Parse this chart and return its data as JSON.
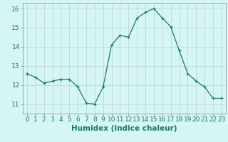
{
  "x": [
    0,
    1,
    2,
    3,
    4,
    5,
    6,
    7,
    8,
    9,
    10,
    11,
    12,
    13,
    14,
    15,
    16,
    17,
    18,
    19,
    20,
    21,
    22,
    23
  ],
  "y": [
    12.6,
    12.4,
    12.1,
    12.2,
    12.3,
    12.3,
    11.9,
    11.05,
    11.0,
    11.9,
    14.1,
    14.6,
    14.5,
    15.5,
    15.8,
    16.0,
    15.5,
    15.05,
    13.8,
    12.6,
    12.2,
    11.9,
    11.3,
    11.3
  ],
  "xlabel": "Humidex (Indice chaleur)",
  "ylim": [
    10.5,
    16.3
  ],
  "xlim": [
    -0.5,
    23.5
  ],
  "yticks": [
    11,
    12,
    13,
    14,
    15,
    16
  ],
  "xticks": [
    0,
    1,
    2,
    3,
    4,
    5,
    6,
    7,
    8,
    9,
    10,
    11,
    12,
    13,
    14,
    15,
    16,
    17,
    18,
    19,
    20,
    21,
    22,
    23
  ],
  "line_color": "#1a7a6e",
  "marker": "+",
  "bg_color": "#d6f5f5",
  "grid_color": "#c0d8d8",
  "tick_fontsize": 6.5,
  "xlabel_fontsize": 7.5
}
